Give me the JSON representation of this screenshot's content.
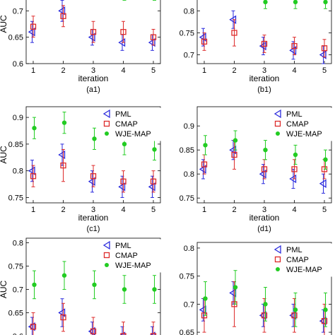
{
  "chart_data": [
    {
      "type": "scatter",
      "caption": "(a1)",
      "xlabel": "iteration",
      "ylabel": "AUC",
      "ylim": [
        0.6,
        0.75
      ],
      "yticks": [
        "0.6",
        "0.65",
        "0.7"
      ],
      "x": [
        1,
        2,
        3,
        4,
        5
      ],
      "legend": null,
      "series": [
        {
          "color": "#2b2bdd",
          "marker": "triangle-left",
          "values": [
            0.66,
            0.7,
            0.65,
            0.64,
            0.64
          ],
          "err": [
            0.02,
            0.02,
            0.015,
            0.015,
            0.015
          ]
        },
        {
          "color": "#dd2b2b",
          "marker": "square",
          "values": [
            0.67,
            0.69,
            0.66,
            0.66,
            0.65
          ],
          "err": [
            0.02,
            0.02,
            0.02,
            0.02,
            0.015
          ]
        },
        {
          "color": "#22cc22",
          "marker": "star",
          "values": [
            0.745,
            0.745,
            0.745,
            0.73,
            0.73
          ],
          "err": [
            0.0,
            0.0,
            0.0,
            0.01,
            0.01
          ]
        }
      ]
    },
    {
      "type": "scatter",
      "caption": "(b1)",
      "xlabel": "iteration",
      "ylabel": "",
      "ylim": [
        0.68,
        0.86
      ],
      "yticks": [
        "0.7",
        "0.75",
        "0.8"
      ],
      "x": [
        1,
        2,
        3,
        4,
        5
      ],
      "legend": null,
      "series": [
        {
          "color": "#2b2bdd",
          "marker": "triangle-left",
          "values": [
            0.74,
            0.78,
            0.72,
            0.71,
            0.7
          ],
          "err": [
            0.02,
            0.02,
            0.02,
            0.02,
            0.02
          ]
        },
        {
          "color": "#dd2b2b",
          "marker": "square",
          "values": [
            0.73,
            0.75,
            0.725,
            0.72,
            0.715
          ],
          "err": [
            0.02,
            0.03,
            0.02,
            0.02,
            0.02
          ]
        },
        {
          "color": "#22cc22",
          "marker": "star",
          "values": [
            0.845,
            0.845,
            0.82,
            0.82,
            0.82
          ],
          "err": [
            0.0,
            0.0,
            0.015,
            0.015,
            0.015
          ]
        }
      ]
    },
    {
      "type": "scatter",
      "caption": "(c1)",
      "xlabel": "iteration",
      "ylabel": "AUC",
      "ylim": [
        0.74,
        0.92
      ],
      "yticks": [
        "0.75",
        "0.8",
        "0.85",
        "0.9"
      ],
      "x": [
        1,
        2,
        3,
        4,
        5
      ],
      "legend": [
        "PML",
        "CMAP",
        "WJE-MAP"
      ],
      "series": [
        {
          "name": "PML",
          "color": "#2b2bdd",
          "marker": "triangle-left",
          "values": [
            0.8,
            0.83,
            0.78,
            0.77,
            0.77
          ],
          "err": [
            0.02,
            0.02,
            0.02,
            0.02,
            0.02
          ]
        },
        {
          "name": "CMAP",
          "color": "#dd2b2b",
          "marker": "square",
          "values": [
            0.79,
            0.81,
            0.79,
            0.78,
            0.78
          ],
          "err": [
            0.02,
            0.03,
            0.02,
            0.02,
            0.02
          ]
        },
        {
          "name": "WJE-MAP",
          "color": "#22cc22",
          "marker": "star",
          "values": [
            0.88,
            0.89,
            0.86,
            0.85,
            0.84
          ],
          "err": [
            0.02,
            0.02,
            0.02,
            0.02,
            0.02
          ]
        }
      ]
    },
    {
      "type": "scatter",
      "caption": "(d1)",
      "xlabel": "iteration",
      "ylabel": "",
      "ylim": [
        0.74,
        0.94
      ],
      "yticks": [
        "0.75",
        "0.8",
        "0.85",
        "0.9"
      ],
      "x": [
        1,
        2,
        3,
        4,
        5
      ],
      "legend": [
        "PML",
        "CMAP",
        "WJE-MAP"
      ],
      "series": [
        {
          "name": "PML",
          "color": "#2b2bdd",
          "marker": "triangle-left",
          "values": [
            0.81,
            0.85,
            0.8,
            0.79,
            0.78
          ],
          "err": [
            0.02,
            0.02,
            0.02,
            0.02,
            0.02
          ]
        },
        {
          "name": "CMAP",
          "color": "#dd2b2b",
          "marker": "square",
          "values": [
            0.82,
            0.84,
            0.81,
            0.81,
            0.81
          ],
          "err": [
            0.02,
            0.03,
            0.02,
            0.02,
            0.02
          ]
        },
        {
          "name": "WJE-MAP",
          "color": "#22cc22",
          "marker": "star",
          "values": [
            0.86,
            0.87,
            0.85,
            0.84,
            0.83
          ],
          "err": [
            0.02,
            0.02,
            0.02,
            0.02,
            0.02
          ]
        }
      ]
    },
    {
      "type": "scatter",
      "caption": "",
      "xlabel": "",
      "ylabel": "AUC",
      "ylim": [
        0.59,
        0.81
      ],
      "yticks": [
        "0.6",
        "0.65",
        "0.7",
        "0.75",
        "0.8"
      ],
      "x": [
        1,
        2,
        3,
        4,
        5
      ],
      "legend": [
        "PML",
        "CMAP",
        "WJE-MAP"
      ],
      "series": [
        {
          "name": "PML",
          "color": "#2b2bdd",
          "marker": "triangle-left",
          "values": [
            0.62,
            0.65,
            0.61,
            0.6,
            0.6
          ],
          "err": [
            0.02,
            0.03,
            0.02,
            0.02,
            0.02
          ]
        },
        {
          "name": "CMAP",
          "color": "#dd2b2b",
          "marker": "square",
          "values": [
            0.62,
            0.64,
            0.61,
            0.6,
            0.6
          ],
          "err": [
            0.03,
            0.03,
            0.03,
            0.03,
            0.03
          ]
        },
        {
          "name": "WJE-MAP",
          "color": "#22cc22",
          "marker": "star",
          "values": [
            0.71,
            0.73,
            0.71,
            0.7,
            0.7
          ],
          "err": [
            0.03,
            0.03,
            0.03,
            0.03,
            0.03
          ]
        }
      ]
    },
    {
      "type": "scatter",
      "caption": "",
      "xlabel": "",
      "ylabel": "",
      "ylim": [
        0.635,
        0.81
      ],
      "yticks": [
        "0.65",
        "0.7",
        "0.75",
        "0.8"
      ],
      "x": [
        1,
        2,
        3,
        4,
        5
      ],
      "legend": [
        "PML",
        "CMAP",
        "WJE-MAP"
      ],
      "series": [
        {
          "name": "PML",
          "color": "#2b2bdd",
          "marker": "triangle-left",
          "values": [
            0.69,
            0.72,
            0.68,
            0.68,
            0.67
          ],
          "err": [
            0.02,
            0.02,
            0.02,
            0.02,
            0.02
          ]
        },
        {
          "name": "CMAP",
          "color": "#dd2b2b",
          "marker": "square",
          "values": [
            0.68,
            0.7,
            0.68,
            0.68,
            0.67
          ],
          "err": [
            0.03,
            0.04,
            0.03,
            0.03,
            0.03
          ]
        },
        {
          "name": "WJE-MAP",
          "color": "#22cc22",
          "marker": "star",
          "values": [
            0.71,
            0.73,
            0.7,
            0.69,
            0.69
          ],
          "err": [
            0.03,
            0.03,
            0.03,
            0.03,
            0.03
          ]
        }
      ]
    }
  ]
}
